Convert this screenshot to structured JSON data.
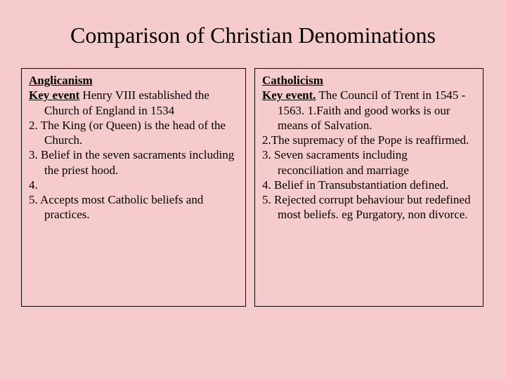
{
  "title": "Comparison of Christian Denominations",
  "background_color": "#f6cbcb",
  "text_color": "#000000",
  "border_color": "#000000",
  "title_fontsize": 32,
  "body_fontsize": 17,
  "left": {
    "heading": "Anglicanism",
    "key_label": "Key event",
    "key_text": " Henry VIII established the Church of England in 1534",
    "p2": "2. The King (or Queen) is the head of the Church.",
    "p3": "3. Belief in the seven sacraments including the priest hood.",
    "p4": "4.",
    "p5": "5. Accepts most Catholic beliefs and practices."
  },
  "right": {
    "heading": "Catholicism",
    "key_label": "Key event.",
    "key_text": " The Council of Trent in 1545 - 1563. 1.Faith and good works is our means of Salvation.",
    "p2": "2.The supremacy of the Pope is reaffirmed.",
    "p3": "3. Seven sacraments including reconciliation and  marriage",
    "p4": "4. Belief in Transubstantiation defined.",
    "p5": "5. Rejected corrupt behaviour but redefined most beliefs. eg Purgatory, non  divorce."
  }
}
